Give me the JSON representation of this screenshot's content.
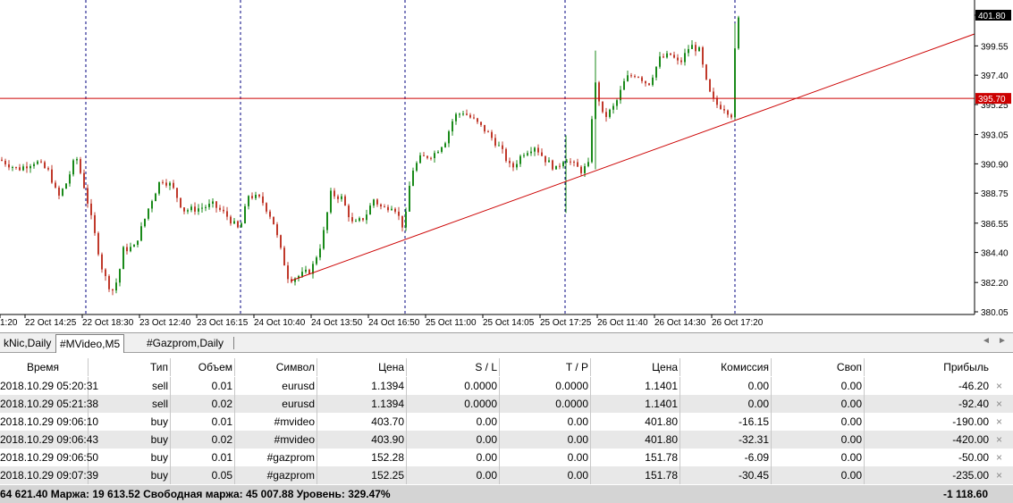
{
  "chart": {
    "price_axis": [
      "401.80",
      "399.55",
      "397.40",
      "395.25",
      "393.05",
      "390.90",
      "388.75",
      "386.55",
      "384.40",
      "382.20",
      "380.05"
    ],
    "current_price": "401.80",
    "level_price": "395.70",
    "time_axis": [
      "1:20",
      "22 Oct 14:25",
      "22 Oct 18:30",
      "23 Oct 12:40",
      "23 Oct 16:15",
      "24 Oct 10:40",
      "24 Oct 13:50",
      "24 Oct 16:50",
      "25 Oct 11:00",
      "25 Oct 14:05",
      "25 Oct 17:25",
      "26 Oct 11:40",
      "26 Oct 14:30",
      "26 Oct 17:20"
    ],
    "colors": {
      "bull": "#1a8a1a",
      "bear": "#c0392b",
      "level": "#cc0000",
      "trend": "#cc0000",
      "separator": "#00007f"
    }
  },
  "tabs": [
    {
      "label": "kNic,Daily",
      "active": false
    },
    {
      "label": "#MVideo,M5",
      "active": true
    },
    {
      "label": "#Gazprom,Daily",
      "active": false
    }
  ],
  "tabs_scroll": {
    "left": "◄",
    "right": "►"
  },
  "table": {
    "headers": {
      "time": "Время",
      "type": "Тип",
      "volume": "Объем",
      "symbol": "Символ",
      "price": "Цена",
      "sl": "S / L",
      "tp": "T / P",
      "cur_price": "Цена",
      "commission": "Комиссия",
      "swap": "Своп",
      "profit": "Прибыль"
    },
    "rows": [
      {
        "time": "2018.10.29 05:20:31",
        "type": "sell",
        "volume": "0.01",
        "symbol": "eurusd",
        "price": "1.1394",
        "sl": "0.0000",
        "tp": "0.0000",
        "cur_price": "1.1401",
        "commission": "0.00",
        "swap": "0.00",
        "profit": "-46.20"
      },
      {
        "time": "2018.10.29 05:21:38",
        "type": "sell",
        "volume": "0.02",
        "symbol": "eurusd",
        "price": "1.1394",
        "sl": "0.0000",
        "tp": "0.0000",
        "cur_price": "1.1401",
        "commission": "0.00",
        "swap": "0.00",
        "profit": "-92.40"
      },
      {
        "time": "2018.10.29 09:06:10",
        "type": "buy",
        "volume": "0.01",
        "symbol": "#mvideo",
        "price": "403.70",
        "sl": "0.00",
        "tp": "0.00",
        "cur_price": "401.80",
        "commission": "-16.15",
        "swap": "0.00",
        "profit": "-190.00"
      },
      {
        "time": "2018.10.29 09:06:43",
        "type": "buy",
        "volume": "0.02",
        "symbol": "#mvideo",
        "price": "403.90",
        "sl": "0.00",
        "tp": "0.00",
        "cur_price": "401.80",
        "commission": "-32.31",
        "swap": "0.00",
        "profit": "-420.00"
      },
      {
        "time": "2018.10.29 09:06:50",
        "type": "buy",
        "volume": "0.01",
        "symbol": "#gazprom",
        "price": "152.28",
        "sl": "0.00",
        "tp": "0.00",
        "cur_price": "151.78",
        "commission": "-6.09",
        "swap": "0.00",
        "profit": "-50.00"
      },
      {
        "time": "2018.10.29 09:07:39",
        "type": "buy",
        "volume": "0.05",
        "symbol": "#gazprom",
        "price": "152.25",
        "sl": "0.00",
        "tp": "0.00",
        "cur_price": "151.78",
        "commission": "-30.45",
        "swap": "0.00",
        "profit": "-235.00"
      }
    ],
    "close_icon": "×"
  },
  "summary": {
    "text": "64 621.40  Маржа: 19 613.52  Свободная маржа: 45 007.88  Уровень: 329.47%",
    "total": "-1 118.60"
  }
}
